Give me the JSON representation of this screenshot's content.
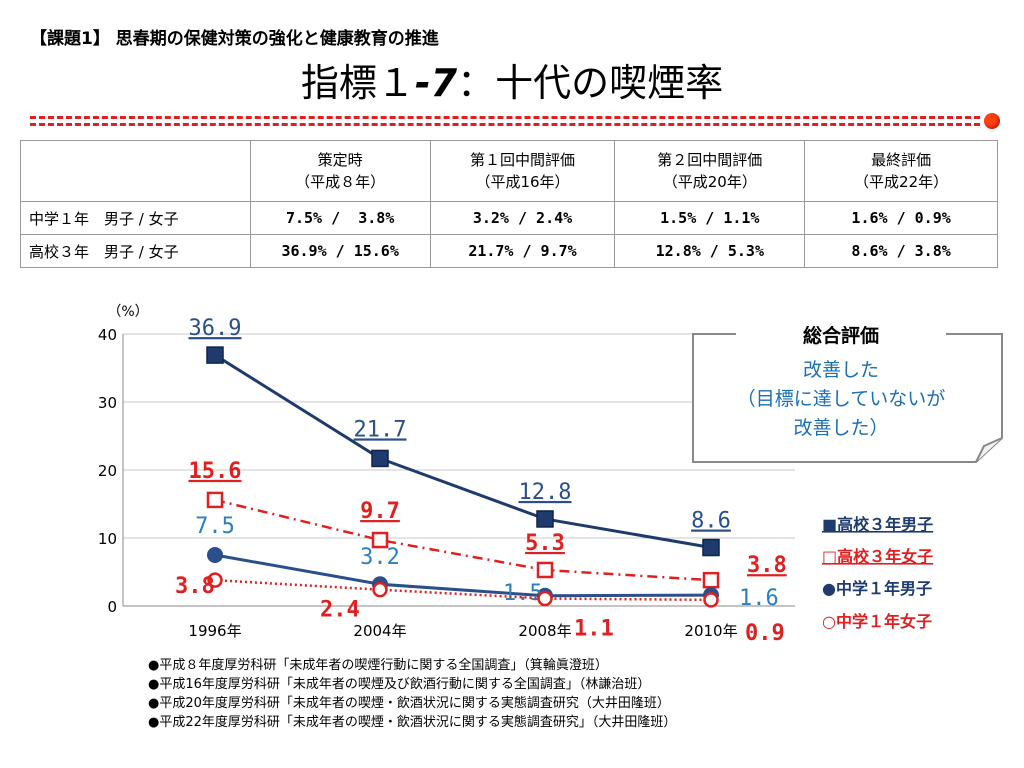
{
  "slide": {
    "subtitle": "【課題1】 思春期の保健対策の強化と健康教育の推進",
    "title_prefix": "指標１",
    "title_number": "-7",
    "title_suffix": "：十代の喫煙率"
  },
  "table": {
    "headers": [
      {
        "line1": "",
        "line2": ""
      },
      {
        "line1": "策定時",
        "line2": "（平成８年）"
      },
      {
        "line1": "第１回中間評価",
        "line2": "（平成16年）"
      },
      {
        "line1": "第２回中間評価",
        "line2": "（平成20年）"
      },
      {
        "line1": "最終評価",
        "line2": "（平成22年）"
      }
    ],
    "rows": [
      {
        "label": "中学１年　男子 / 女子",
        "cells": [
          "7.5% /  3.8%",
          "3.2% / 2.4%",
          "1.5% / 1.1%",
          "1.6% / 0.9%"
        ]
      },
      {
        "label": "高校３年　男子 / 女子",
        "cells": [
          "36.9% / 15.6%",
          "21.7% / 9.7%",
          "12.8% / 5.3%",
          "8.6% / 3.8%"
        ]
      }
    ]
  },
  "chart_data": {
    "type": "line",
    "ylabel": "（%）",
    "ylim": [
      0,
      40
    ],
    "yticks": [
      "0",
      "10",
      "20",
      "30",
      "40"
    ],
    "categories": [
      "1996年",
      "2004年",
      "2008年",
      "2010年"
    ],
    "grid": true,
    "legend_position": "right",
    "series": [
      {
        "name": "高校３年男子",
        "legend_text": "■高校３年男子",
        "values": [
          36.9,
          21.7,
          12.8,
          8.6
        ],
        "labels": [
          "36.9",
          "21.7",
          "12.8",
          "8.6"
        ],
        "color": "#1f3b6e",
        "label_color": "#2a4f8a",
        "marker": "square-filled",
        "line": "solid"
      },
      {
        "name": "高校３年女子",
        "legend_text": "□高校３年女子",
        "values": [
          15.6,
          9.7,
          5.3,
          3.8
        ],
        "labels": [
          "15.6",
          "9.7",
          "5.3",
          "3.8"
        ],
        "color": "#e02020",
        "label_color": "#e02020",
        "marker": "square-open",
        "line": "dashdot"
      },
      {
        "name": "中学１年男子",
        "legend_text": "●中学１年男子",
        "values": [
          7.5,
          3.2,
          1.5,
          1.6
        ],
        "labels": [
          "7.5",
          "3.2",
          "1.5",
          "1.6"
        ],
        "color": "#2a4f8a",
        "label_color": "#2a7fc0",
        "marker": "circle-filled",
        "line": "solid"
      },
      {
        "name": "中学１年女子",
        "legend_text": "○中学１年女子",
        "values": [
          3.8,
          2.4,
          1.1,
          0.9
        ],
        "labels": [
          "3.8",
          "2.4",
          "1.1",
          "0.9"
        ],
        "color": "#e02020",
        "label_color": "#e02020",
        "marker": "circle-open",
        "line": "dotted"
      }
    ]
  },
  "summary": {
    "heading": "総合評価",
    "lines": [
      "改善した",
      "（目標に達していないが",
      "改善した）"
    ]
  },
  "sources": [
    "●平成８年度厚労科研「未成年者の喫煙行動に関する全国調査」（箕輪眞澄班）",
    "●平成16年度厚労科研「未成年者の喫煙及び飲酒行動に関する全国調査」（林謙治班）",
    "●平成20年度厚労科研「未成年者の喫煙・飲酒状況に関する実態調査研究（大井田隆班）",
    "●平成22年度厚労科研「未成年者の喫煙・飲酒状況に関する実態調査研究」（大井田隆班）"
  ],
  "colors": {
    "accent_red": "#e02020",
    "navy": "#1f3b6e",
    "blue_text": "#1a6fb5"
  }
}
